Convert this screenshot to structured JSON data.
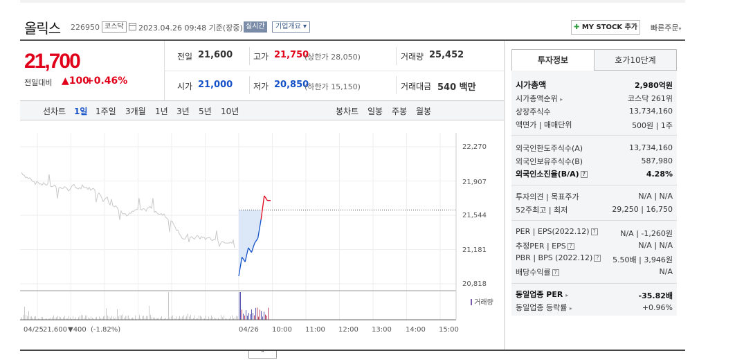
{
  "header": {
    "title": "올릭스",
    "code": "226950",
    "market": "코스닥",
    "datetime": "2023.04.26 09:48 기준(장중)",
    "realtime": "실시간",
    "company_info": "기업개요",
    "mystock_button": "MY STOCK 추가",
    "quick_order": "빠른주문"
  },
  "quote": {
    "price": "21,700",
    "change_label": "전일대비",
    "change_value": "▲100",
    "change_pct": "+0.46%",
    "prev_close_label": "전일",
    "prev_close": "21,600",
    "high_label": "고가",
    "high": "21,750",
    "upper_limit": "(상한가 28,050)",
    "volume_label": "거래량",
    "volume": "25,452",
    "open_label": "시가",
    "open": "21,000",
    "low_label": "저가",
    "low": "20,850",
    "lower_limit": "(하한가 15,150)",
    "amount_label": "거래대금",
    "amount": "540 백만"
  },
  "periods": {
    "line_label": "선차트",
    "line": [
      "1일",
      "1주일",
      "3개월",
      "1년",
      "3년",
      "5년",
      "10년"
    ],
    "candle_label": "봉차트",
    "candle": [
      "일봉",
      "주봉",
      "월봉"
    ]
  },
  "tabs": {
    "invest": "투자정보",
    "orderbook": "호가10단계"
  },
  "invest": {
    "g1": [
      {
        "label": "시가총액",
        "value": "2,980억원"
      },
      {
        "label": "시가총액순위",
        "value": "코스닥 261위"
      },
      {
        "label": "상장주식수",
        "value": "13,734,160"
      },
      {
        "label": "액면가 | 매매단위",
        "value": "500원 | 1주"
      }
    ],
    "g2": [
      {
        "label": "외국인한도주식수(A)",
        "value": "13,734,160"
      },
      {
        "label": "외국인보유주식수(B)",
        "value": "587,980"
      },
      {
        "label": "외국인소진율(B/A)",
        "value": "4.28%"
      }
    ],
    "g3": [
      {
        "label": "투자의견 | 목표주가",
        "value": "N/A | N/A"
      },
      {
        "label": "52주최고 | 최저",
        "value": "29,250 | 16,750"
      }
    ],
    "g4": [
      {
        "label": "PER | EPS(2022.12)",
        "value": "N/A | -1,260원"
      },
      {
        "label": "추정PER | EPS",
        "value": "N/A | N/A"
      },
      {
        "label": "PBR | BPS (2022.12)",
        "value": "5.50배 | 3,946원"
      },
      {
        "label": "배당수익률",
        "value": "N/A"
      }
    ],
    "g5": [
      {
        "label": "동일업종 PER",
        "value": "-35.82배"
      },
      {
        "label": "동일업종 등락률",
        "value": "+0.96%"
      }
    ]
  },
  "chart": {
    "y_ticks": [
      "22,270",
      "21,907",
      "21,544",
      "21,181",
      "20,818"
    ],
    "x_ticks": [
      "04/26",
      "10:00",
      "11:00",
      "12:00",
      "13:00",
      "14:00",
      "15:00"
    ],
    "volume_legend": "거래량",
    "prev_date": "04/25",
    "prev_close": "21,600",
    "prev_change": "▼400",
    "prev_pct": "(-1.82%)",
    "colors": {
      "up": "#e0001a",
      "down": "#1450c8",
      "prev": "#c8c8c8"
    }
  },
  "chart_data": {
    "type": "line",
    "ylim": [
      20818,
      22270
    ],
    "prev_close": 21600,
    "today_x": [
      "09:00",
      "09:05",
      "09:10",
      "09:15",
      "09:20",
      "09:25",
      "09:30",
      "09:35",
      "09:40",
      "09:45",
      "09:48"
    ],
    "today_y": [
      20900,
      21100,
      21050,
      21200,
      21150,
      21250,
      21300,
      21500,
      21750,
      21700,
      21700
    ]
  }
}
